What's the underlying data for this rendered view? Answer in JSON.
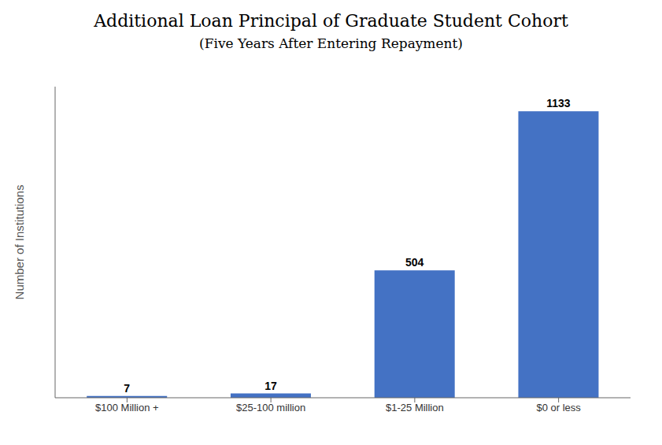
{
  "chart_data": {
    "type": "bar",
    "title": "Additional Loan Principal of Graduate Student Cohort",
    "subtitle": "(Five Years After Entering Repayment)",
    "ylabel": "Number of Institutions",
    "categories": [
      "$100 Million +",
      "$25-100 million",
      "$1-25 Million",
      "$0 or less"
    ],
    "values": [
      7,
      17,
      504,
      1133
    ],
    "color": "#4472C4",
    "ylim": [
      0,
      1230
    ],
    "data_labels": true,
    "tick_labels": "x",
    "grid": false
  }
}
